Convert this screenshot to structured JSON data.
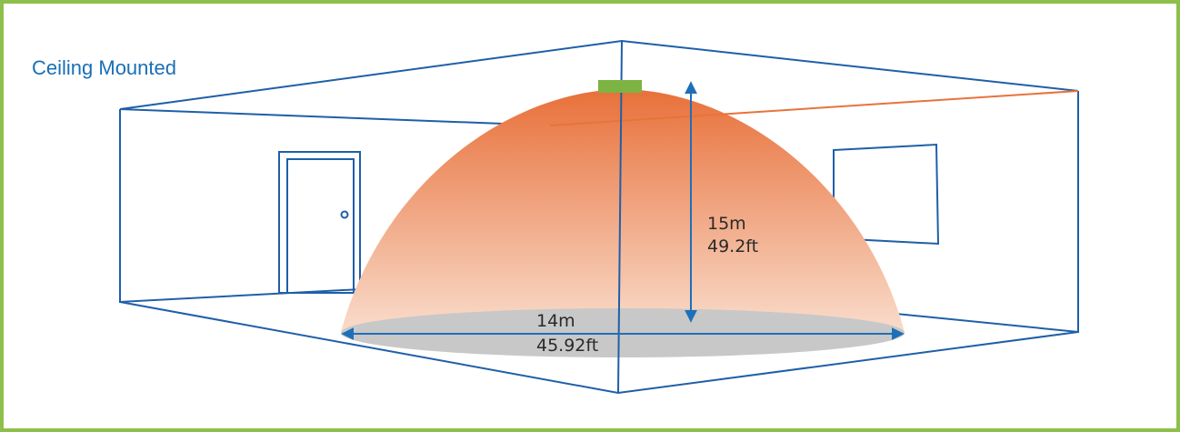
{
  "header": {
    "title": "Ceiling Mounted"
  },
  "labels": {
    "height_m": "15m",
    "height_ft": "49.2ft",
    "width_m": "14m",
    "width_ft": "45.92ft"
  }
}
